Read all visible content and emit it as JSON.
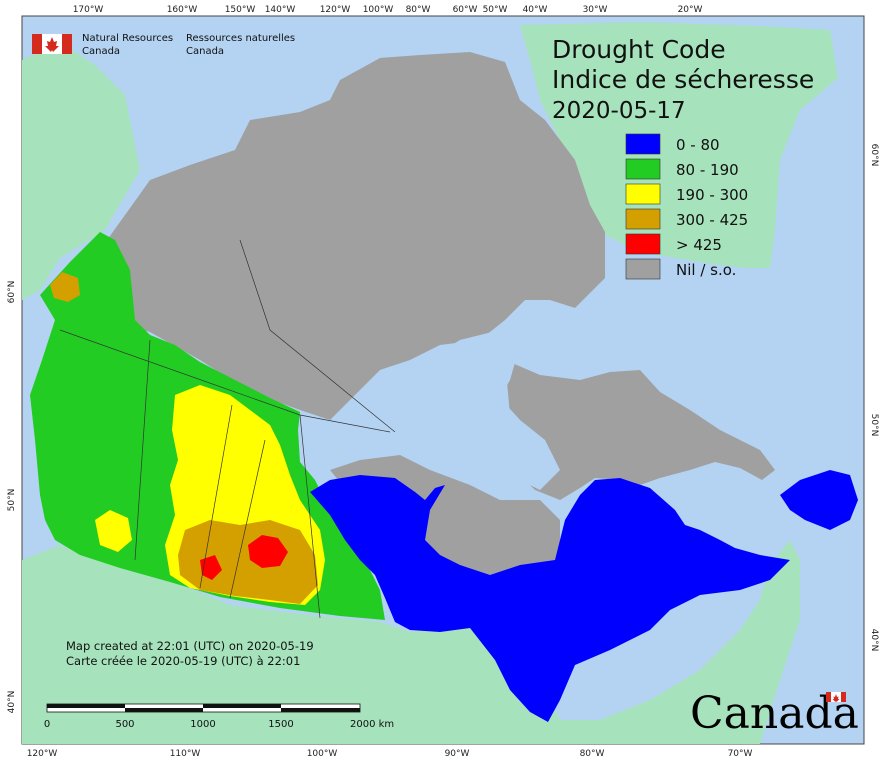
{
  "map": {
    "title_en": "Drought Code",
    "title_fr": "Indice de sécheresse",
    "date": "2020-05-17",
    "legend": [
      {
        "label": "0 - 80",
        "color": "#0000ff"
      },
      {
        "label": "80 - 190",
        "color": "#22cc22"
      },
      {
        "label": "190 - 300",
        "color": "#ffff00"
      },
      {
        "label": "300 - 425",
        "color": "#d4a000"
      },
      {
        "label": "> 425",
        "color": "#ff0000"
      },
      {
        "label": "Nil / s.o.",
        "color": "#a0a0a0"
      }
    ],
    "organization": {
      "en_line1": "Natural Resources",
      "en_line2": "Canada",
      "fr_line1": "Ressources naturelles",
      "fr_line2": "Canada",
      "flag_icon": "canada-flag-icon"
    },
    "credits": {
      "en": "Map created at 22:01 (UTC) on 2020-05-19",
      "fr": "Carte créée le 2020-05-19 (UTC) à 22:01"
    },
    "scale_bar": {
      "labels": [
        "0",
        "500",
        "1000",
        "1500",
        "2000  km"
      ]
    },
    "wordmark": "Canada",
    "top_longitudes": [
      "170°W",
      "160°W",
      "150°W",
      "140°W",
      "120°W",
      "100°W",
      "80°W",
      "60°W",
      "50°W",
      "40°W",
      "30°W",
      "20°W"
    ],
    "bottom_longitudes": [
      "120°W",
      "110°W",
      "100°W",
      "90°W",
      "80°W",
      "70°W"
    ],
    "left_latitudes": [
      "60°N",
      "50°N",
      "40°N"
    ],
    "right_latitudes": [
      "60°N",
      "50°N",
      "40°N"
    ],
    "colors": {
      "ocean": "#b4d3f2",
      "foreign_land": "#a6e3bc",
      "no_data": "#a0a0a0"
    }
  }
}
